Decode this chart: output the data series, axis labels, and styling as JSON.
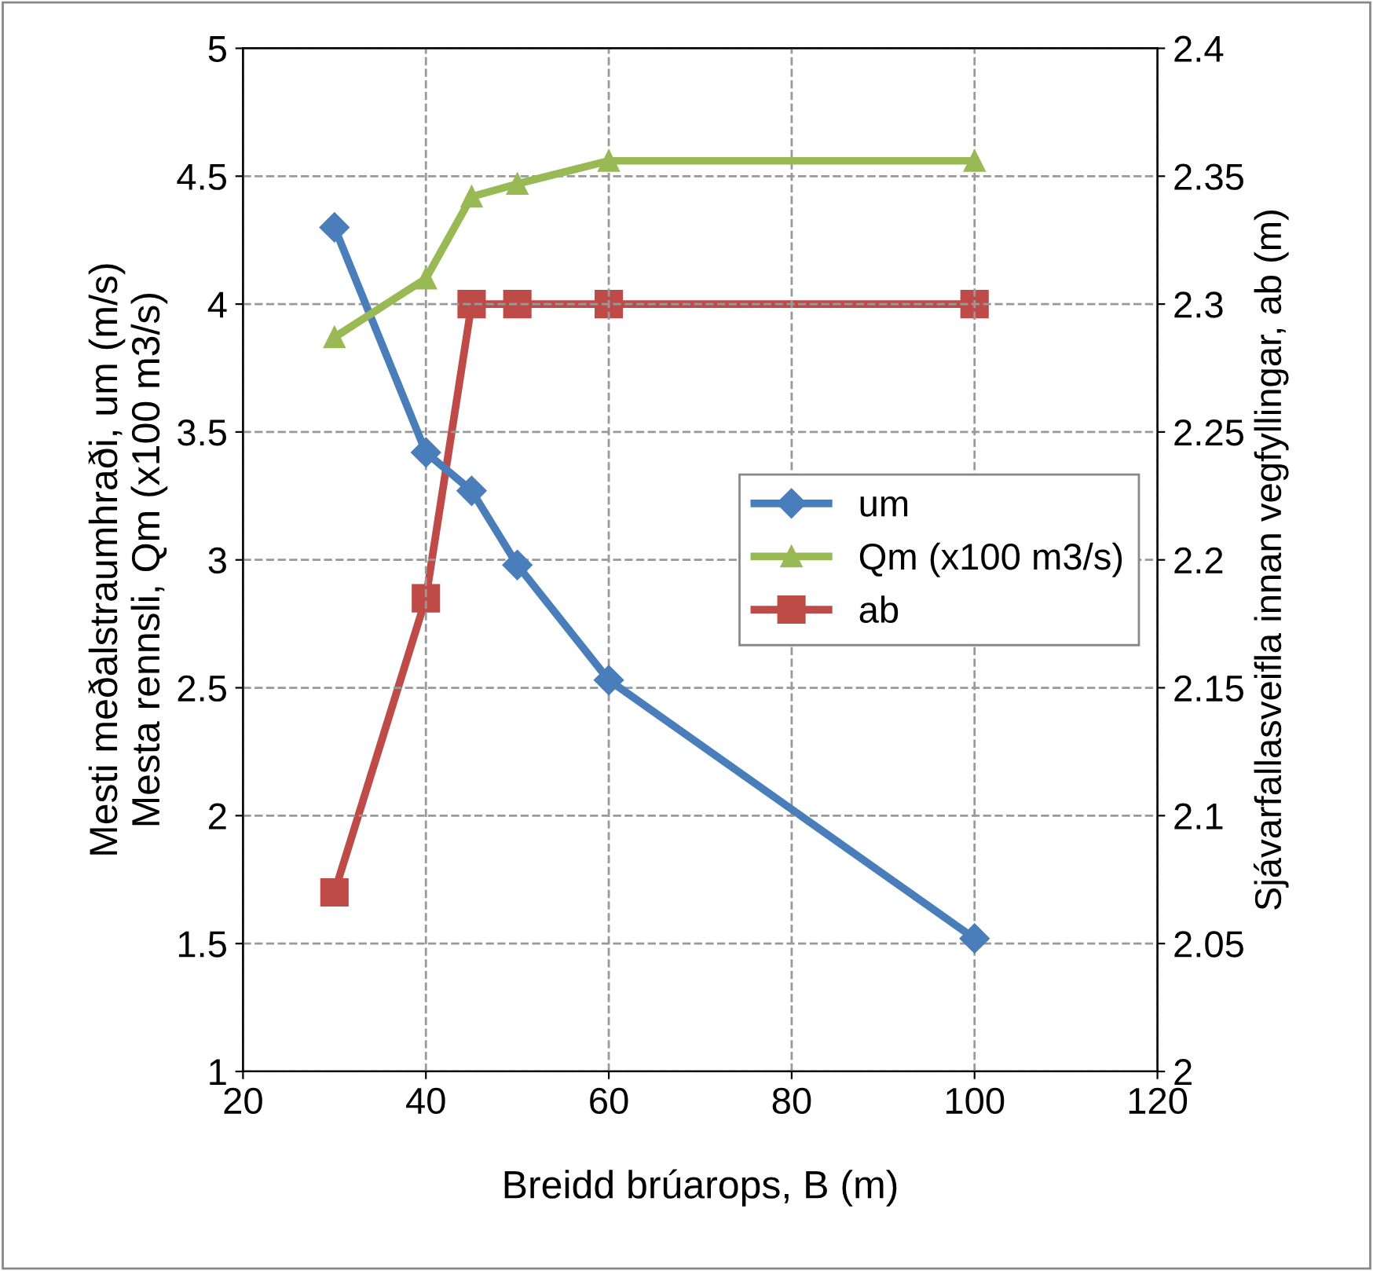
{
  "chart_data": {
    "type": "line",
    "xlabel": "Breidd brúarops, B (m)",
    "ylabel": "Mesti meðalstraumhraði, um (m/s)\nMesta rennsli, Qm (x100 m3/s)",
    "y2label": "Sjávarfallasveifla innan vegfyllingar, ab (m)",
    "x": [
      30,
      40,
      45,
      50,
      60,
      100
    ],
    "series": [
      {
        "name": "um",
        "color": "#4a7ebb",
        "marker": "diamond",
        "values": [
          4.3,
          3.42,
          3.27,
          2.98,
          2.53,
          1.52
        ]
      },
      {
        "name": "Qm (x100 m3/s)",
        "color": "#98b954",
        "marker": "triangle",
        "values": [
          3.87,
          4.1,
          4.42,
          4.47,
          4.56,
          4.56
        ]
      },
      {
        "name": "ab",
        "color": "#be4b48",
        "marker": "square",
        "axis": "y2",
        "values": [
          2.07,
          2.185,
          2.3,
          2.3,
          2.3,
          2.3
        ]
      }
    ],
    "xlim": [
      20,
      120
    ],
    "xticks": [
      20,
      40,
      60,
      80,
      100,
      120
    ],
    "ylim": [
      1,
      5
    ],
    "yticks": [
      1,
      1.5,
      2,
      2.5,
      3,
      3.5,
      4,
      4.5,
      5
    ],
    "y2lim": [
      2,
      2.4
    ],
    "y2ticks": [
      2,
      2.05,
      2.1,
      2.15,
      2.2,
      2.25,
      2.3,
      2.35,
      2.4
    ],
    "grid": true,
    "legend": "right",
    "line_style": "solid"
  }
}
